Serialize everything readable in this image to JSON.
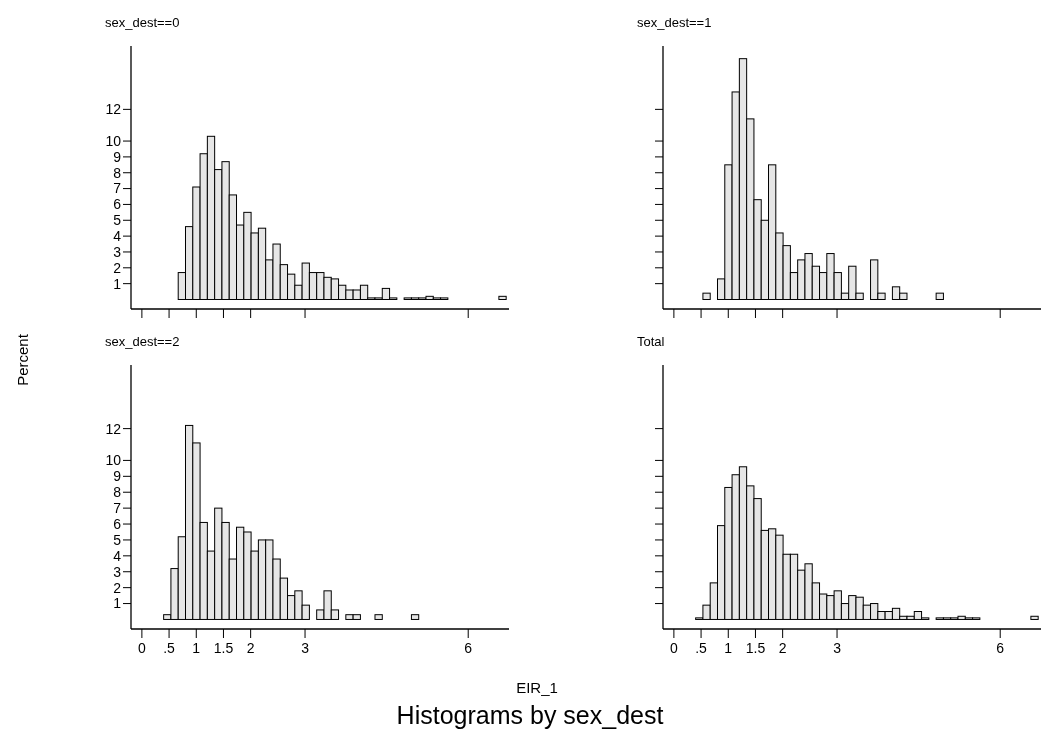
{
  "chart_data": [
    {
      "type": "histogram",
      "title": "sex_dest==0",
      "xlabel": "EIR_1",
      "ylabel": "Percent",
      "annotations": [
        "Histograms by sex_dest"
      ],
      "tick_labels": "y",
      "color": "#e6e6e6",
      "xlim": [
        -0.2,
        6.75
      ],
      "ylim": [
        -0.6,
        16
      ],
      "xticks": [
        0,
        0.5,
        1,
        1.5,
        2,
        3,
        6
      ],
      "yticks": [
        1,
        2,
        3,
        4,
        5,
        6,
        7,
        8,
        9,
        10,
        12
      ],
      "grid": false,
      "bins": [
        0.4,
        0.534,
        0.668,
        0.802,
        0.936,
        1.07,
        1.204,
        1.338,
        1.472,
        1.606,
        1.74,
        1.874,
        2.008,
        2.142,
        2.276,
        2.41,
        2.544,
        2.678,
        2.812,
        2.946,
        3.08,
        3.214,
        3.348,
        3.482,
        3.616,
        3.75,
        3.884,
        4.018,
        4.152,
        4.286,
        4.42,
        4.554,
        4.688,
        4.822,
        4.956,
        5.09,
        5.224,
        5.358,
        5.492,
        5.626,
        5.76,
        5.894,
        6.028,
        6.162,
        6.296,
        6.43,
        6.564,
        6.698
      ],
      "values": [
        null,
        null,
        1.7,
        4.6,
        7.1,
        9.2,
        10.3,
        8.2,
        8.7,
        6.6,
        4.7,
        5.5,
        4.2,
        4.5,
        2.5,
        3.5,
        2.2,
        1.6,
        0.9,
        2.3,
        1.7,
        1.7,
        1.4,
        1.3,
        0.9,
        0.6,
        0.6,
        0.9,
        0.1,
        0.1,
        0.7,
        0.1,
        null,
        0.1,
        0.1,
        0.1,
        0.2,
        0.1,
        0.1,
        null,
        null,
        null,
        null,
        null,
        null,
        null,
        0.2
      ]
    },
    {
      "type": "histogram",
      "title": "sex_dest==1",
      "tick_labels": false,
      "color": "#e6e6e6",
      "xlim": [
        -0.2,
        6.75
      ],
      "ylim": [
        -0.6,
        16
      ],
      "xticks": [
        0,
        0.5,
        1,
        1.5,
        2,
        3,
        6
      ],
      "yticks": [
        1,
        2,
        3,
        4,
        5,
        6,
        7,
        8,
        9,
        10,
        12
      ],
      "grid": false,
      "bins": [
        0.4,
        0.534,
        0.668,
        0.802,
        0.936,
        1.07,
        1.204,
        1.338,
        1.472,
        1.606,
        1.74,
        1.874,
        2.008,
        2.142,
        2.276,
        2.41,
        2.544,
        2.678,
        2.812,
        2.946,
        3.08,
        3.214,
        3.348,
        3.482,
        3.616,
        3.75,
        3.884,
        4.018,
        4.152,
        4.286,
        4.42,
        4.554,
        4.688,
        4.822,
        4.956,
        5.09,
        5.224,
        5.358,
        5.492,
        5.626,
        5.76,
        5.894,
        6.028,
        6.162,
        6.296,
        6.43,
        6.564,
        6.698
      ],
      "values": [
        null,
        0.4,
        null,
        1.3,
        8.5,
        13.1,
        15.2,
        11.4,
        6.3,
        5.0,
        8.5,
        4.2,
        3.4,
        1.7,
        2.5,
        2.9,
        2.1,
        1.7,
        2.9,
        1.7,
        0.4,
        2.1,
        0.4,
        null,
        2.5,
        0.4,
        null,
        0.8,
        0.4,
        null,
        null,
        null,
        null,
        0.4,
        null,
        null,
        null,
        null,
        null,
        null,
        null,
        null,
        null,
        null,
        null,
        null,
        null
      ]
    },
    {
      "type": "histogram",
      "title": "sex_dest==2",
      "color": "#e6e6e6",
      "xlim": [
        -0.2,
        6.75
      ],
      "ylim": [
        -0.6,
        16
      ],
      "xticks": [
        0,
        {
          "value": 0.5,
          "label": ".5"
        },
        1,
        1.5,
        2,
        3,
        6
      ],
      "yticks": [
        1,
        2,
        3,
        4,
        5,
        6,
        7,
        8,
        9,
        10,
        12
      ],
      "grid": false,
      "bins": [
        0.4,
        0.534,
        0.668,
        0.802,
        0.936,
        1.07,
        1.204,
        1.338,
        1.472,
        1.606,
        1.74,
        1.874,
        2.008,
        2.142,
        2.276,
        2.41,
        2.544,
        2.678,
        2.812,
        2.946,
        3.08,
        3.214,
        3.348,
        3.482,
        3.616,
        3.75,
        3.884,
        4.018,
        4.152,
        4.286,
        4.42,
        4.554,
        4.688,
        4.822,
        4.956,
        5.09,
        5.224,
        5.358,
        5.492,
        5.626,
        5.76,
        5.894,
        6.028,
        6.162,
        6.296,
        6.43,
        6.564,
        6.698
      ],
      "values": [
        0.3,
        3.2,
        5.2,
        12.2,
        11.1,
        6.1,
        4.3,
        7.0,
        6.1,
        3.8,
        5.8,
        5.5,
        4.3,
        5.0,
        5.0,
        3.8,
        2.6,
        1.5,
        1.8,
        0.9,
        null,
        0.6,
        1.8,
        0.6,
        null,
        0.3,
        0.3,
        null,
        null,
        0.3,
        null,
        null,
        null,
        null,
        0.3,
        null,
        null,
        null,
        null,
        null,
        null,
        null,
        null,
        null,
        null,
        null,
        null
      ]
    },
    {
      "type": "histogram",
      "title": "Total",
      "tick_labels": "x",
      "color": "#e6e6e6",
      "xlim": [
        -0.2,
        6.75
      ],
      "ylim": [
        -0.6,
        16
      ],
      "xticks": [
        0,
        {
          "value": 0.5,
          "label": ".5"
        },
        1,
        1.5,
        2,
        3,
        6
      ],
      "yticks": [
        1,
        2,
        3,
        4,
        5,
        6,
        7,
        8,
        9,
        10,
        12
      ],
      "grid": false,
      "bins": [
        0.4,
        0.534,
        0.668,
        0.802,
        0.936,
        1.07,
        1.204,
        1.338,
        1.472,
        1.606,
        1.74,
        1.874,
        2.008,
        2.142,
        2.276,
        2.41,
        2.544,
        2.678,
        2.812,
        2.946,
        3.08,
        3.214,
        3.348,
        3.482,
        3.616,
        3.75,
        3.884,
        4.018,
        4.152,
        4.286,
        4.42,
        4.554,
        4.688,
        4.822,
        4.956,
        5.09,
        5.224,
        5.358,
        5.492,
        5.626,
        5.76,
        5.894,
        6.028,
        6.162,
        6.296,
        6.43,
        6.564,
        6.698
      ],
      "values": [
        0.1,
        0.9,
        2.3,
        5.9,
        8.3,
        9.1,
        9.6,
        8.4,
        7.6,
        5.6,
        5.7,
        5.3,
        4.1,
        4.1,
        3.1,
        3.5,
        2.3,
        1.6,
        1.5,
        1.8,
        1.0,
        1.5,
        1.4,
        0.9,
        1.0,
        0.5,
        0.5,
        0.7,
        0.2,
        0.2,
        0.5,
        0.1,
        null,
        0.1,
        0.1,
        0.1,
        0.2,
        0.1,
        0.1,
        null,
        null,
        null,
        null,
        null,
        null,
        null,
        0.2
      ]
    }
  ]
}
